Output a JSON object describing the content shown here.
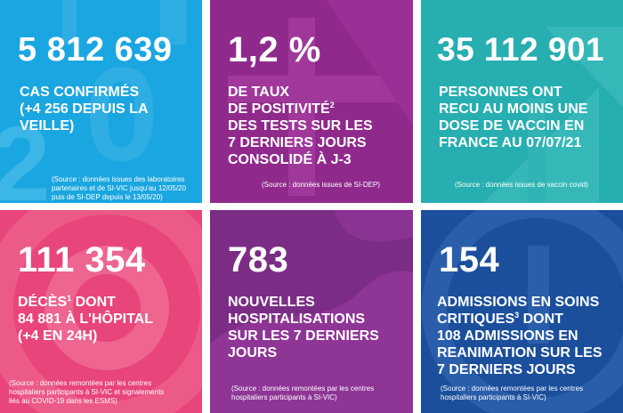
{
  "tiles": [
    {
      "number": "5 812 639",
      "lines": [
        "CAS CONFIRMÉS",
        "(+4 256 DEPUIS LA",
        "VEILLE)"
      ],
      "source": [
        "(Source : données issues des laboratoires",
        "partenaires et de SI-VIC jusqu'au 12/05/20",
        "puis de SI-DEP depuis le 13/05/20)"
      ],
      "color": "#1aa6e0"
    },
    {
      "number": "1,2 %",
      "lines": [
        "DE TAUX",
        "DE POSITIVITÉ",
        "DES TESTS SUR LES",
        "7 DERNIERS JOURS",
        "CONSOLIDÉ À J-3"
      ],
      "sup": "2",
      "source": [
        "(Source : données issues de SI-DEP)"
      ],
      "color": "#8f2a8c"
    },
    {
      "number": "35 112 901",
      "lines": [
        "PERSONNES ONT",
        "RECU AU MOINS UNE",
        "DOSE DE VACCIN EN",
        "FRANCE AU 07/07/21"
      ],
      "source": [
        "(Source : données issues de vaccin covid)"
      ],
      "color": "#27aeb0"
    },
    {
      "number": "111 354",
      "lines": [
        "DÉCÈS",
        "84 881 À L'HÔPITAL",
        "(+4 EN 24H)"
      ],
      "line1_tail": " DONT",
      "sup": "1",
      "source": [
        "(Source : données remontées par les centres",
        "hospitaliers participants à SI-VIC et signalements",
        "liés au COVID-19 dans les ESMS)"
      ],
      "color": "#e8457a"
    },
    {
      "number": "783",
      "lines": [
        "NOUVELLES",
        "HOSPITALISATIONS",
        "SUR LES 7 DERNIERS",
        "JOURS"
      ],
      "source": [
        "(Source : données remontées par les centres",
        "hospitaliers participants à SI-VIC)"
      ],
      "color": "#7b2d86"
    },
    {
      "number": "154",
      "lines": [
        "ADMISSIONS EN SOINS",
        "CRITIQUES",
        "108 ADMISSIONS EN",
        "REANIMATION SUR LES",
        "7 DERNIERS JOURS"
      ],
      "line2_tail": " DONT",
      "sup": "3",
      "source": [
        "(Source : données remontées par les centres",
        "hospitaliers participants à SI-VIC)"
      ],
      "color": "#1b4f9c"
    }
  ]
}
